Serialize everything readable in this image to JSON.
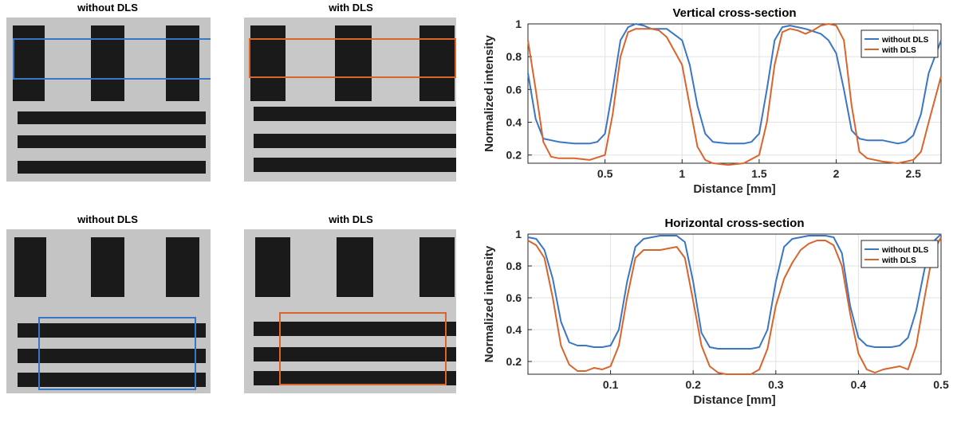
{
  "images": {
    "top_left_title": "without DLS",
    "top_right_title": "with DLS",
    "bottom_left_title": "without DLS",
    "bottom_right_title": "with DLS",
    "colors": {
      "without_box": "#3a76c4",
      "with_box": "#d9642c"
    }
  },
  "chart_data": [
    {
      "type": "line",
      "title": "Vertical cross-section",
      "xlabel": "Distance [mm]",
      "ylabel": "Normalized intensity",
      "xlim": [
        0,
        2.68
      ],
      "ylim": [
        0.15,
        1.0
      ],
      "xticks": [
        0.5,
        1,
        1.5,
        2,
        2.5
      ],
      "yticks": [
        0.2,
        0.4,
        0.6,
        0.8,
        1
      ],
      "xtick_labels": [
        "0.5",
        "1",
        "1.5",
        "2",
        "2.5"
      ],
      "ytick_labels": [
        "0.2",
        "0.4",
        "0.6",
        "0.8",
        "1"
      ],
      "grid": true,
      "legend": "top-right",
      "series": [
        {
          "name": "without DLS",
          "color": "#3a76c4",
          "x": [
            0,
            0.05,
            0.1,
            0.2,
            0.3,
            0.4,
            0.45,
            0.5,
            0.55,
            0.6,
            0.65,
            0.7,
            0.75,
            0.8,
            0.9,
            1.0,
            1.05,
            1.1,
            1.15,
            1.2,
            1.3,
            1.4,
            1.45,
            1.5,
            1.55,
            1.6,
            1.65,
            1.7,
            1.75,
            1.8,
            1.9,
            1.95,
            2.0,
            2.05,
            2.1,
            2.15,
            2.2,
            2.3,
            2.4,
            2.45,
            2.5,
            2.55,
            2.6,
            2.68
          ],
          "y": [
            0.7,
            0.42,
            0.3,
            0.28,
            0.27,
            0.27,
            0.28,
            0.33,
            0.6,
            0.9,
            0.98,
            1.0,
            0.99,
            0.97,
            0.97,
            0.9,
            0.75,
            0.5,
            0.33,
            0.28,
            0.27,
            0.27,
            0.28,
            0.33,
            0.6,
            0.9,
            0.98,
            0.99,
            0.98,
            0.97,
            0.94,
            0.9,
            0.82,
            0.6,
            0.35,
            0.3,
            0.29,
            0.29,
            0.27,
            0.28,
            0.32,
            0.45,
            0.7,
            0.9
          ]
        },
        {
          "name": "with DLS",
          "color": "#d9642c",
          "x": [
            0,
            0.05,
            0.1,
            0.15,
            0.2,
            0.3,
            0.4,
            0.5,
            0.55,
            0.6,
            0.65,
            0.7,
            0.75,
            0.8,
            0.85,
            0.9,
            1.0,
            1.05,
            1.1,
            1.15,
            1.2,
            1.3,
            1.4,
            1.5,
            1.55,
            1.6,
            1.65,
            1.7,
            1.75,
            1.8,
            1.85,
            1.9,
            1.95,
            2.0,
            2.05,
            2.1,
            2.15,
            2.2,
            2.3,
            2.4,
            2.5,
            2.55,
            2.6,
            2.68
          ],
          "y": [
            0.9,
            0.6,
            0.28,
            0.19,
            0.18,
            0.18,
            0.17,
            0.2,
            0.45,
            0.8,
            0.95,
            0.97,
            0.97,
            0.97,
            0.96,
            0.92,
            0.75,
            0.5,
            0.25,
            0.17,
            0.15,
            0.14,
            0.15,
            0.2,
            0.4,
            0.75,
            0.95,
            0.97,
            0.96,
            0.94,
            0.96,
            0.99,
            1.0,
            0.99,
            0.9,
            0.5,
            0.22,
            0.18,
            0.16,
            0.15,
            0.17,
            0.22,
            0.4,
            0.68
          ]
        }
      ]
    },
    {
      "type": "line",
      "title": "Horizontal cross-section",
      "xlabel": "Distance [mm]",
      "ylabel": "Normalized intensity",
      "xlim": [
        0,
        0.5
      ],
      "ylim": [
        0.12,
        1.0
      ],
      "xticks": [
        0.1,
        0.2,
        0.3,
        0.4,
        0.5
      ],
      "yticks": [
        0.2,
        0.4,
        0.6,
        0.8,
        1
      ],
      "xtick_labels": [
        "0.1",
        "0.2",
        "0.3",
        "0.4",
        "0.5"
      ],
      "ytick_labels": [
        "0.2",
        "0.4",
        "0.6",
        "0.8",
        "1"
      ],
      "grid": true,
      "legend": "top-right",
      "series": [
        {
          "name": "without DLS",
          "color": "#3a76c4",
          "x": [
            0,
            0.01,
            0.02,
            0.03,
            0.04,
            0.05,
            0.06,
            0.07,
            0.08,
            0.09,
            0.1,
            0.11,
            0.12,
            0.13,
            0.14,
            0.15,
            0.16,
            0.17,
            0.18,
            0.19,
            0.2,
            0.21,
            0.22,
            0.23,
            0.24,
            0.25,
            0.26,
            0.27,
            0.28,
            0.29,
            0.3,
            0.31,
            0.32,
            0.33,
            0.34,
            0.35,
            0.36,
            0.37,
            0.38,
            0.39,
            0.4,
            0.41,
            0.42,
            0.43,
            0.44,
            0.45,
            0.46,
            0.47,
            0.48,
            0.49,
            0.5
          ],
          "y": [
            0.98,
            0.97,
            0.9,
            0.72,
            0.45,
            0.32,
            0.3,
            0.3,
            0.29,
            0.29,
            0.3,
            0.4,
            0.7,
            0.92,
            0.97,
            0.98,
            0.99,
            0.99,
            0.99,
            0.95,
            0.7,
            0.38,
            0.29,
            0.28,
            0.28,
            0.28,
            0.28,
            0.28,
            0.29,
            0.4,
            0.7,
            0.92,
            0.97,
            0.98,
            0.99,
            0.99,
            0.99,
            0.98,
            0.88,
            0.55,
            0.35,
            0.3,
            0.29,
            0.29,
            0.29,
            0.3,
            0.35,
            0.52,
            0.78,
            0.95,
            1.0
          ]
        },
        {
          "name": "with DLS",
          "color": "#d9642c",
          "x": [
            0,
            0.01,
            0.02,
            0.03,
            0.04,
            0.05,
            0.06,
            0.07,
            0.08,
            0.09,
            0.1,
            0.11,
            0.12,
            0.13,
            0.14,
            0.15,
            0.16,
            0.17,
            0.18,
            0.19,
            0.2,
            0.21,
            0.22,
            0.23,
            0.24,
            0.25,
            0.26,
            0.27,
            0.28,
            0.29,
            0.3,
            0.31,
            0.32,
            0.33,
            0.34,
            0.35,
            0.36,
            0.37,
            0.38,
            0.39,
            0.4,
            0.41,
            0.42,
            0.43,
            0.44,
            0.45,
            0.46,
            0.47,
            0.48,
            0.49,
            0.5
          ],
          "y": [
            0.96,
            0.93,
            0.85,
            0.6,
            0.3,
            0.18,
            0.14,
            0.14,
            0.16,
            0.15,
            0.17,
            0.3,
            0.6,
            0.85,
            0.9,
            0.9,
            0.9,
            0.91,
            0.92,
            0.85,
            0.58,
            0.3,
            0.17,
            0.13,
            0.12,
            0.12,
            0.12,
            0.12,
            0.15,
            0.28,
            0.55,
            0.72,
            0.82,
            0.9,
            0.94,
            0.96,
            0.96,
            0.93,
            0.8,
            0.5,
            0.25,
            0.15,
            0.13,
            0.15,
            0.16,
            0.17,
            0.15,
            0.3,
            0.6,
            0.88,
            0.98
          ]
        }
      ]
    }
  ]
}
